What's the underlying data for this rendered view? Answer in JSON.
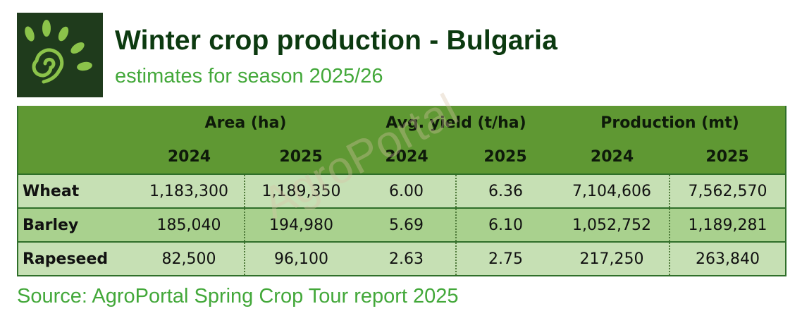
{
  "header": {
    "title": "Winter crop production - Bulgaria",
    "subtitle": "estimates for season 2025/26"
  },
  "table": {
    "groups": [
      "Area (ha)",
      "Avg. yield (t/ha)",
      "Production (mt)"
    ],
    "years": [
      "2024",
      "2025",
      "2024",
      "2025",
      "2024",
      "2025"
    ],
    "rows": [
      {
        "crop": "Wheat",
        "values": [
          "1,183,300",
          "1,189,350",
          "6.00",
          "6.36",
          "7,104,606",
          "7,562,570"
        ]
      },
      {
        "crop": "Barley",
        "values": [
          "185,040",
          "194,980",
          "5.69",
          "6.10",
          "1,052,752",
          "1,189,281"
        ]
      },
      {
        "crop": "Rapeseed",
        "values": [
          "82,500",
          "96,100",
          "2.63",
          "2.75",
          "217,250",
          "263,840"
        ]
      }
    ]
  },
  "watermark": "AgroPortal",
  "source": "Source: AgroPortal Spring Crop Tour report 2025",
  "colors": {
    "title": "#0c3a10",
    "accent_green": "#43a83a",
    "header_bg": "#5f9833",
    "row_light": "#c6e0b4",
    "row_mid": "#a9d18e",
    "logo_bg": "#1f3b1c"
  },
  "logo": {
    "icon": "leaf-spiral-icon"
  }
}
